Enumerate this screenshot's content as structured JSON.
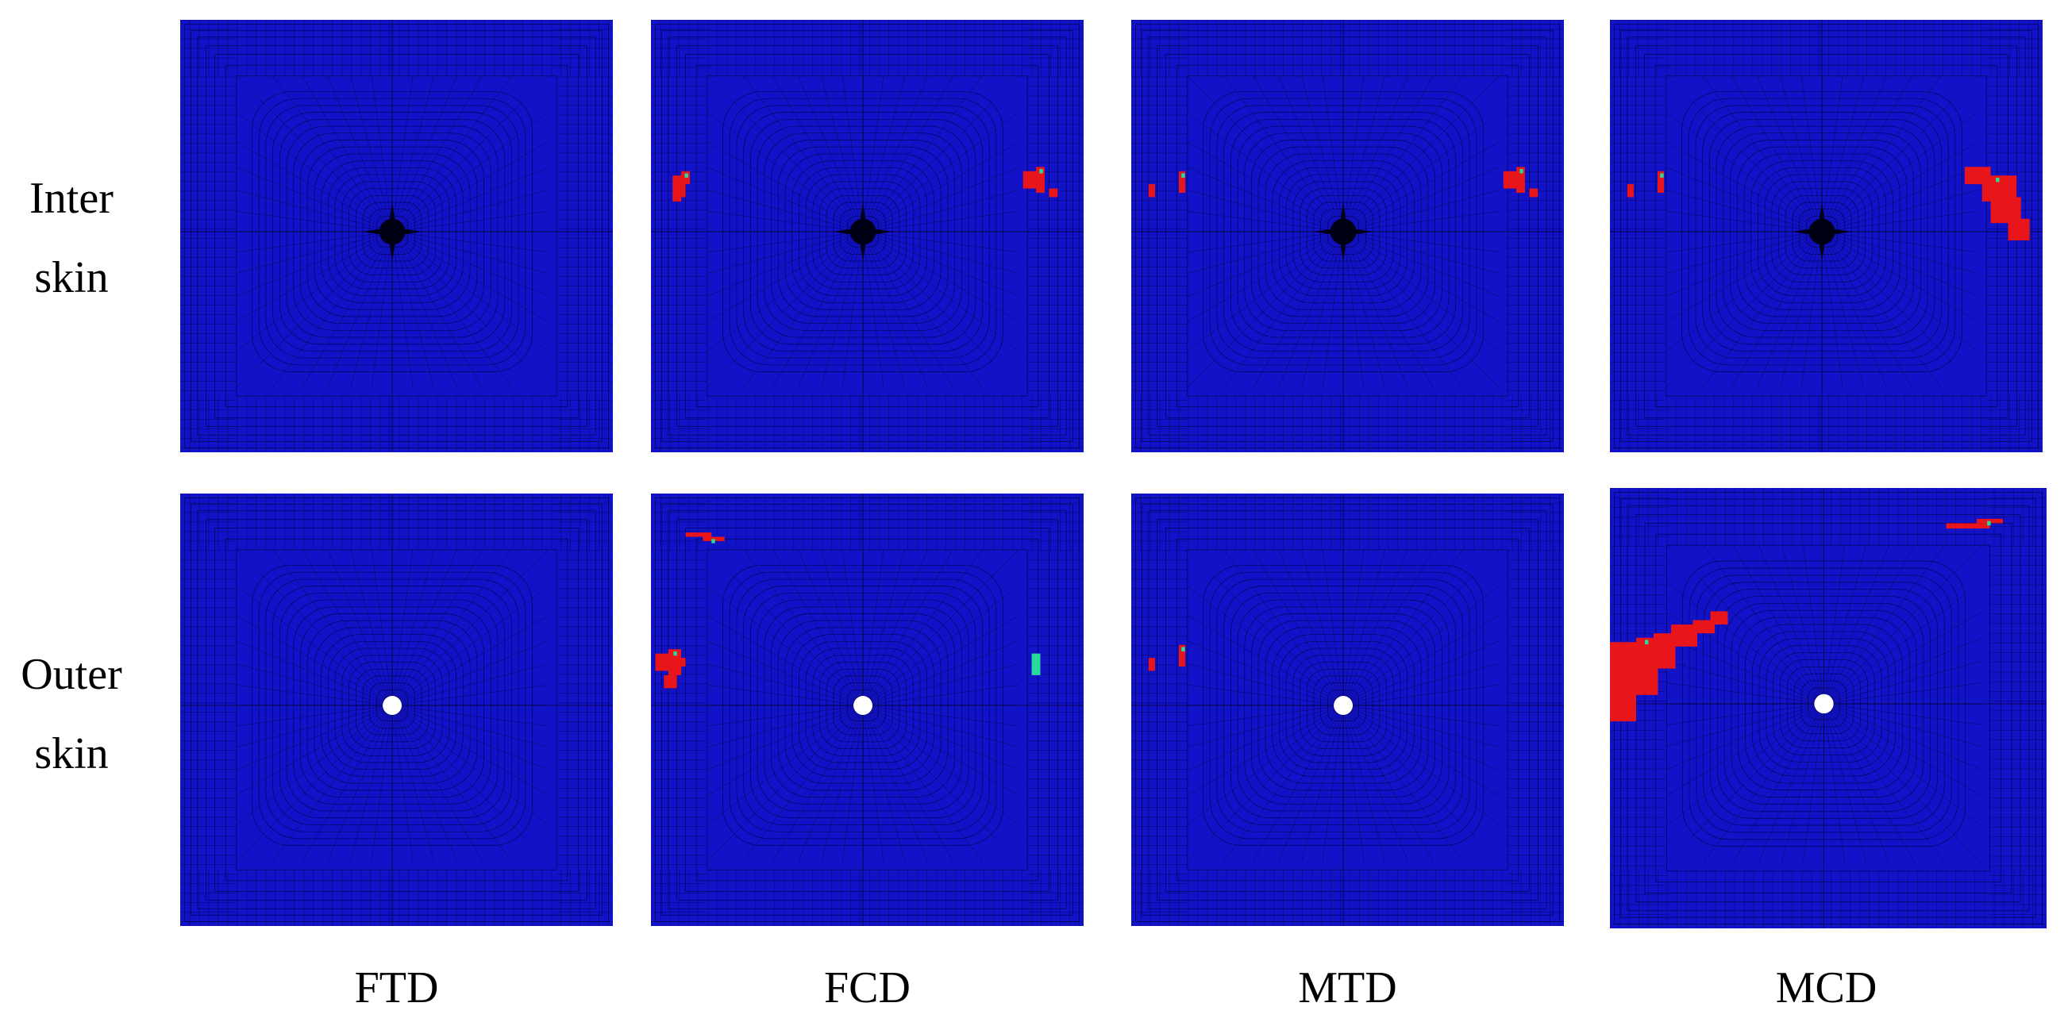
{
  "figure": {
    "rows": [
      {
        "id": "inter",
        "label_line1": "Inter",
        "label_line2": "skin"
      },
      {
        "id": "outer",
        "label_line1": "Outer",
        "label_line2": "skin"
      }
    ],
    "columns": [
      {
        "id": "ftd",
        "label": "FTD"
      },
      {
        "id": "fcd",
        "label": "FCD"
      },
      {
        "id": "mtd",
        "label": "MTD"
      },
      {
        "id": "mcd",
        "label": "MCD"
      }
    ],
    "colors": {
      "undamaged": "#1212c8",
      "damaged": "#e8161b",
      "partial": "#2bd99a",
      "mesh": "#000033",
      "hole": "#ffffff"
    },
    "center_feature": {
      "inter": "dark-node",
      "outer": "hole"
    },
    "damage": {
      "inter": {
        "ftd": [],
        "fcd": [
          "left-edge-small",
          "right-edge-small"
        ],
        "mtd": [
          "left-edge-tiny",
          "right-edge-small"
        ],
        "mcd": [
          "left-edge-tiny",
          "right-edge-large"
        ]
      },
      "outer": {
        "ftd": [],
        "fcd": [
          "top-left-streak",
          "left-edge-medium",
          "right-edge-partial"
        ],
        "mtd": [
          "left-edge-tiny"
        ],
        "mcd": [
          "top-right-streak",
          "left-diagonal-large"
        ]
      }
    }
  }
}
